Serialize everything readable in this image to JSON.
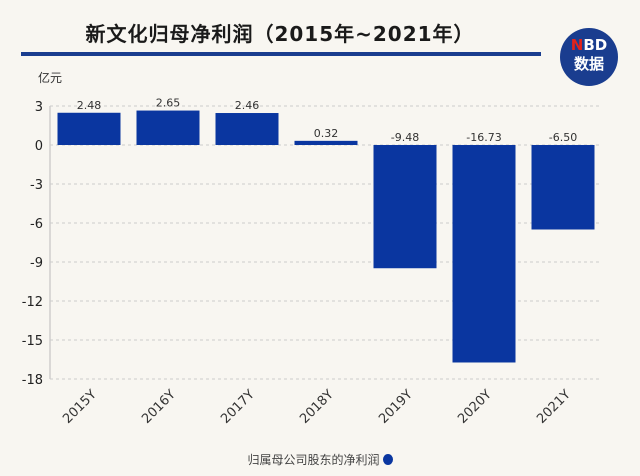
{
  "title": "新文化归母净利润（2015年~2021年）",
  "logo": {
    "n": "N",
    "bd": "BD",
    "line2": "数据",
    "color": "#1a3d8f",
    "accent": "#e2231a"
  },
  "chart_data": {
    "type": "bar",
    "title": "新文化归母净利润（2015年~2021年）",
    "ylabel": "亿元",
    "categories": [
      "2015Y",
      "2016Y",
      "2017Y",
      "2018Y",
      "2019Y",
      "2020Y",
      "2021Y"
    ],
    "series": [
      {
        "name": "归属母公司股东的净利润",
        "values": [
          2.48,
          2.65,
          2.46,
          0.32,
          -9.48,
          -16.73,
          -6.5
        ],
        "color": "#0a36a0"
      }
    ],
    "data_labels": [
      "2.48",
      "2.65",
      "2.46",
      "0.32",
      "-9.48",
      "-16.73",
      "-6.50"
    ],
    "yticks": [
      3,
      0,
      -3,
      -6,
      -9,
      -12,
      -15,
      -18
    ],
    "ylim": [
      -18,
      3
    ],
    "grid": true,
    "legend": "bottom"
  }
}
